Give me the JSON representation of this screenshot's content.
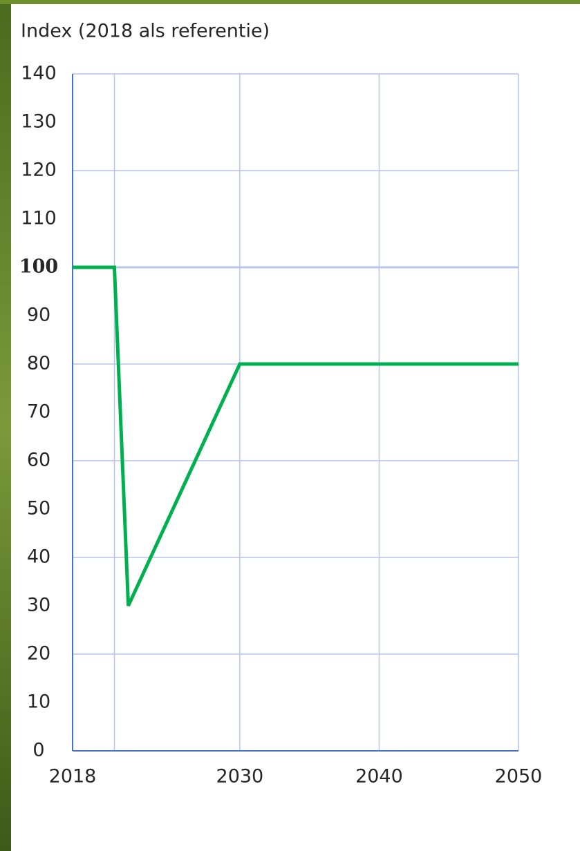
{
  "chart_data": {
    "type": "line",
    "title": "Index  (2018 als referentie)",
    "x": [
      2018,
      2021,
      2022,
      2030,
      2050
    ],
    "series": [
      {
        "color": "#00b050",
        "values": [
          100,
          100,
          30,
          80,
          80
        ]
      }
    ],
    "xlim": [
      2018,
      2050
    ],
    "xticks": [
      2018,
      {
        "value": 2021,
        "label": null
      },
      2030,
      2040,
      2050
    ],
    "ylim": [
      0,
      140
    ],
    "yticks": [
      0,
      10,
      20,
      30,
      40,
      50,
      60,
      70,
      80,
      90,
      100,
      110,
      120,
      130,
      140
    ],
    "ygrid": [
      20,
      40,
      60,
      80,
      100,
      120,
      140
    ],
    "bold_ytick": 100,
    "grid": true
  }
}
